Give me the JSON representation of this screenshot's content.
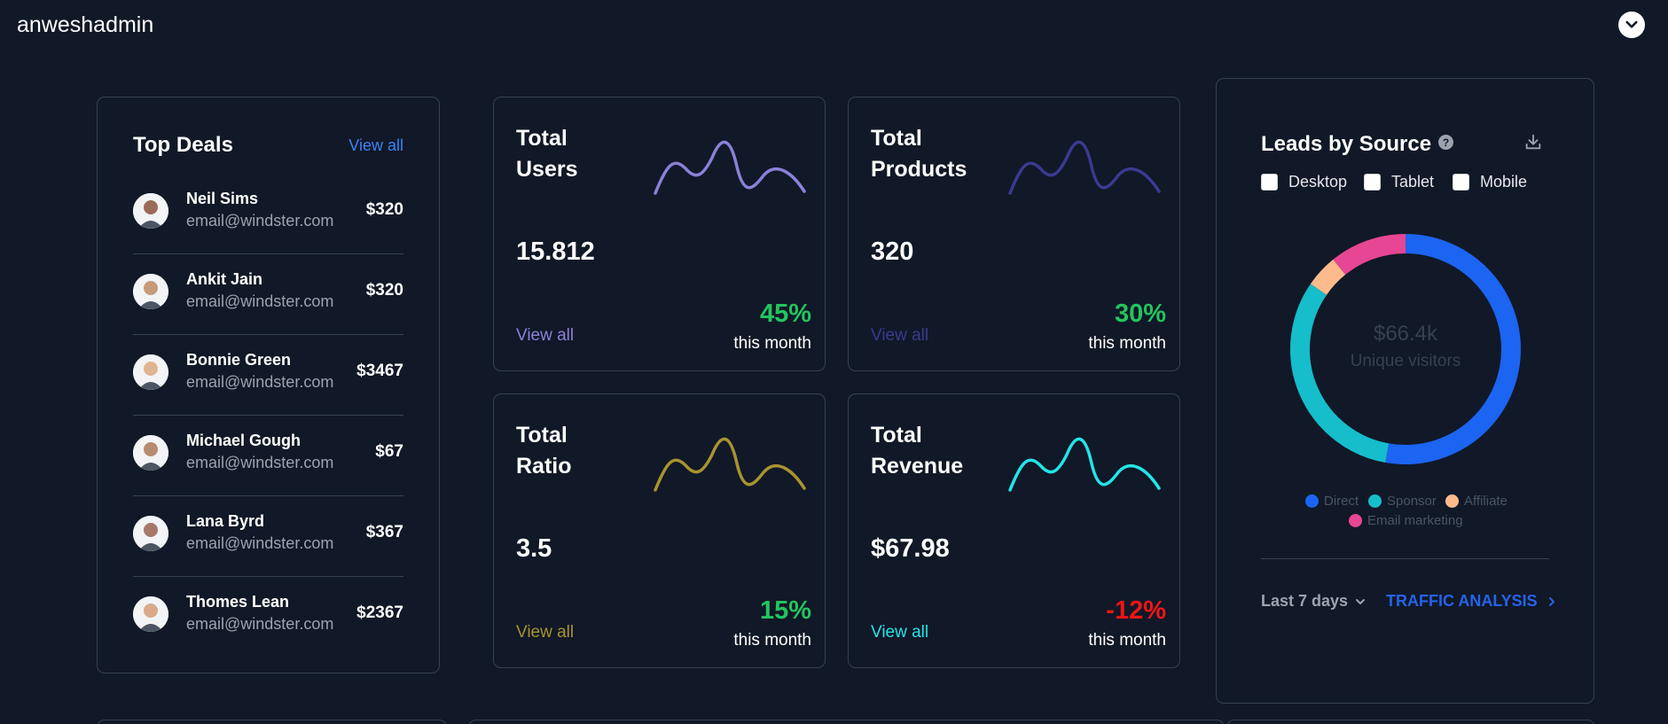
{
  "header": {
    "brand": "anweshadmin"
  },
  "top_deals": {
    "title": "Top Deals",
    "view_all": "View all",
    "items": [
      {
        "name": "Neil Sims",
        "email": "email@windster.com",
        "amount": "$320"
      },
      {
        "name": "Ankit Jain",
        "email": "email@windster.com",
        "amount": "$320"
      },
      {
        "name": "Bonnie Green",
        "email": "email@windster.com",
        "amount": "$3467"
      },
      {
        "name": "Michael Gough",
        "email": "email@windster.com",
        "amount": "$67"
      },
      {
        "name": "Lana Byrd",
        "email": "email@windster.com",
        "amount": "$367"
      },
      {
        "name": "Thomes Lean",
        "email": "email@windster.com",
        "amount": "$2367"
      }
    ]
  },
  "stats": [
    {
      "title_line1": "Total",
      "title_line2": "Users",
      "value": "15.812",
      "link": "View all",
      "percent": "45%",
      "sub": "this month",
      "color": "#8b80d9",
      "percent_color": "#22c55e"
    },
    {
      "title_line1": "Total",
      "title_line2": "Products",
      "value": "320",
      "link": "View all",
      "percent": "30%",
      "sub": "this month",
      "color": "#3b3a91",
      "percent_color": "#22c55e"
    },
    {
      "title_line1": "Total",
      "title_line2": "Ratio",
      "value": "3.5",
      "link": "View all",
      "percent": "15%",
      "sub": "this month",
      "color": "#a8932f",
      "percent_color": "#22c55e"
    },
    {
      "title_line1": "Total",
      "title_line2": "Revenue",
      "value": "$67.98",
      "link": "View all",
      "percent": "-12%",
      "sub": "this month",
      "color": "#22e5e8",
      "percent_color": "#ef1515"
    }
  ],
  "leads": {
    "title": "Leads by Source",
    "help_icon": "question-icon",
    "download_icon": "download-icon",
    "filters": [
      {
        "label": "Desktop",
        "checked": false
      },
      {
        "label": "Tablet",
        "checked": false
      },
      {
        "label": "Mobile",
        "checked": false
      }
    ],
    "center_value": "$66.4k",
    "center_label": "Unique visitors",
    "legend": [
      {
        "label": "Direct",
        "color": "#1c64f2"
      },
      {
        "label": "Sponsor",
        "color": "#16bdca"
      },
      {
        "label": "Affiliate",
        "color": "#fdba8c"
      },
      {
        "label": "Email marketing",
        "color": "#e74694"
      }
    ],
    "period": "Last 7 days",
    "traffic_link": "TRAFFIC ANALYSIS"
  },
  "chart_data": {
    "type": "pie",
    "categories": [
      "Direct",
      "Sponsor",
      "Affiliate",
      "Email marketing"
    ],
    "values": [
      52.8,
      31.8,
      4.6,
      10.8
    ]
  }
}
